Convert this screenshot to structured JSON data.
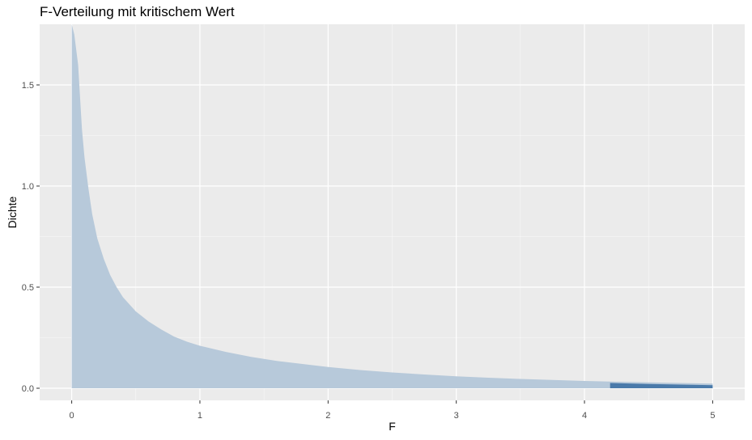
{
  "chart_data": {
    "type": "area",
    "title": "F-Verteilung mit kritischem Wert",
    "xlabel": "F",
    "ylabel": "Dichte",
    "xlim": [
      -0.25,
      5.25
    ],
    "ylim": [
      -0.06,
      1.8
    ],
    "x_ticks": [
      0,
      1,
      2,
      3,
      4,
      5
    ],
    "x_tick_labels": [
      "0",
      "1",
      "2",
      "3",
      "4",
      "5"
    ],
    "y_ticks": [
      0.0,
      0.5,
      1.0,
      1.5
    ],
    "y_tick_labels": [
      "0.0",
      "0.5",
      "1.0",
      "1.5"
    ],
    "grid": true,
    "series": [
      {
        "x": [
          0.0,
          0.02,
          0.05,
          0.08,
          0.1,
          0.13,
          0.16,
          0.2,
          0.25,
          0.3,
          0.35,
          0.4,
          0.5,
          0.6,
          0.7,
          0.8,
          0.9,
          1.0,
          1.2,
          1.4,
          1.6,
          1.8,
          2.0,
          2.25,
          2.5,
          2.75,
          3.0,
          3.25,
          3.5,
          3.75,
          4.0,
          4.2,
          4.5,
          4.75,
          5.0
        ],
        "y": [
          1.8,
          1.75,
          1.6,
          1.28,
          1.14,
          0.99,
          0.86,
          0.74,
          0.64,
          0.56,
          0.5,
          0.45,
          0.38,
          0.33,
          0.29,
          0.255,
          0.23,
          0.21,
          0.18,
          0.155,
          0.135,
          0.12,
          0.105,
          0.09,
          0.078,
          0.068,
          0.059,
          0.052,
          0.046,
          0.041,
          0.036,
          0.033,
          0.029,
          0.026,
          0.023
        ],
        "color": "#b7c9da"
      },
      {
        "x": [
          4.2,
          4.5,
          4.75,
          5.0
        ],
        "y": [
          0.026,
          0.021,
          0.018,
          0.015
        ],
        "color": "#4a7aaa"
      }
    ],
    "colors": {
      "panel": "#ebebeb",
      "grid_major": "#ffffff"
    }
  }
}
